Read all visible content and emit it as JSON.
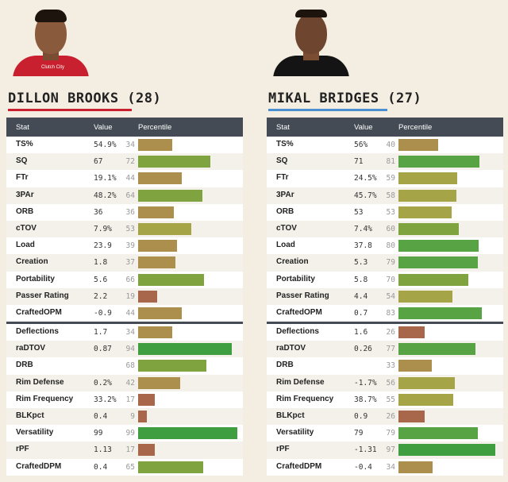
{
  "columns": {
    "stat": "Stat",
    "value": "Value",
    "percentile": "Percentile"
  },
  "players": [
    {
      "name": "DILLON BROOKS (28)",
      "accent": "#c8202f",
      "jersey_text": "Clutch City",
      "offense": [
        {
          "stat": "TS%",
          "value": "54.9%",
          "pct": 34
        },
        {
          "stat": "SQ",
          "value": "67",
          "pct": 72
        },
        {
          "stat": "FTr",
          "value": "19.1%",
          "pct": 44
        },
        {
          "stat": "3PAr",
          "value": "48.2%",
          "pct": 64
        },
        {
          "stat": "ORB",
          "value": "36",
          "pct": 36
        },
        {
          "stat": "cTOV",
          "value": "7.9%",
          "pct": 53
        },
        {
          "stat": "Load",
          "value": "23.9",
          "pct": 39
        },
        {
          "stat": "Creation",
          "value": "1.8",
          "pct": 37
        },
        {
          "stat": "Portability",
          "value": "5.6",
          "pct": 66
        },
        {
          "stat": "Passer Rating",
          "value": "2.2",
          "pct": 19
        },
        {
          "stat": "CraftedOPM",
          "value": "-0.9",
          "pct": 44
        }
      ],
      "defense": [
        {
          "stat": "Deflections",
          "value": "1.7",
          "pct": 34
        },
        {
          "stat": "raDTOV",
          "value": "0.87",
          "pct": 94
        },
        {
          "stat": "DRB",
          "value": "",
          "pct": 68
        },
        {
          "stat": "Rim Defense",
          "value": "0.2%",
          "pct": 42
        },
        {
          "stat": "Rim Frequency",
          "value": "33.2%",
          "pct": 17
        },
        {
          "stat": "BLKpct",
          "value": "0.4",
          "pct": 9
        },
        {
          "stat": "Versatility",
          "value": "99",
          "pct": 99
        },
        {
          "stat": "rPF",
          "value": "1.13",
          "pct": 17
        },
        {
          "stat": "CraftedDPM",
          "value": "0.4",
          "pct": 65
        }
      ]
    },
    {
      "name": "MIKAL BRIDGES (27)",
      "accent": "#4a8fd0",
      "jersey_text": "",
      "offense": [
        {
          "stat": "TS%",
          "value": "56%",
          "pct": 40
        },
        {
          "stat": "SQ",
          "value": "71",
          "pct": 81
        },
        {
          "stat": "FTr",
          "value": "24.5%",
          "pct": 59
        },
        {
          "stat": "3PAr",
          "value": "45.7%",
          "pct": 58
        },
        {
          "stat": "ORB",
          "value": "53",
          "pct": 53
        },
        {
          "stat": "cTOV",
          "value": "7.4%",
          "pct": 60
        },
        {
          "stat": "Load",
          "value": "37.8",
          "pct": 80
        },
        {
          "stat": "Creation",
          "value": "5.3",
          "pct": 79
        },
        {
          "stat": "Portability",
          "value": "5.8",
          "pct": 70
        },
        {
          "stat": "Passer Rating",
          "value": "4.4",
          "pct": 54
        },
        {
          "stat": "CraftedOPM",
          "value": "0.7",
          "pct": 83
        }
      ],
      "defense": [
        {
          "stat": "Deflections",
          "value": "1.6",
          "pct": 26
        },
        {
          "stat": "raDTOV",
          "value": "0.26",
          "pct": 77
        },
        {
          "stat": "DRB",
          "value": "",
          "pct": 33
        },
        {
          "stat": "Rim Defense",
          "value": "-1.7%",
          "pct": 56
        },
        {
          "stat": "Rim Frequency",
          "value": "38.7%",
          "pct": 55
        },
        {
          "stat": "BLKpct",
          "value": "0.9",
          "pct": 26
        },
        {
          "stat": "Versatility",
          "value": "79",
          "pct": 79
        },
        {
          "stat": "rPF",
          "value": "-1.31",
          "pct": 97
        },
        {
          "stat": "CraftedDPM",
          "value": "-0.4",
          "pct": 34
        }
      ]
    }
  ]
}
